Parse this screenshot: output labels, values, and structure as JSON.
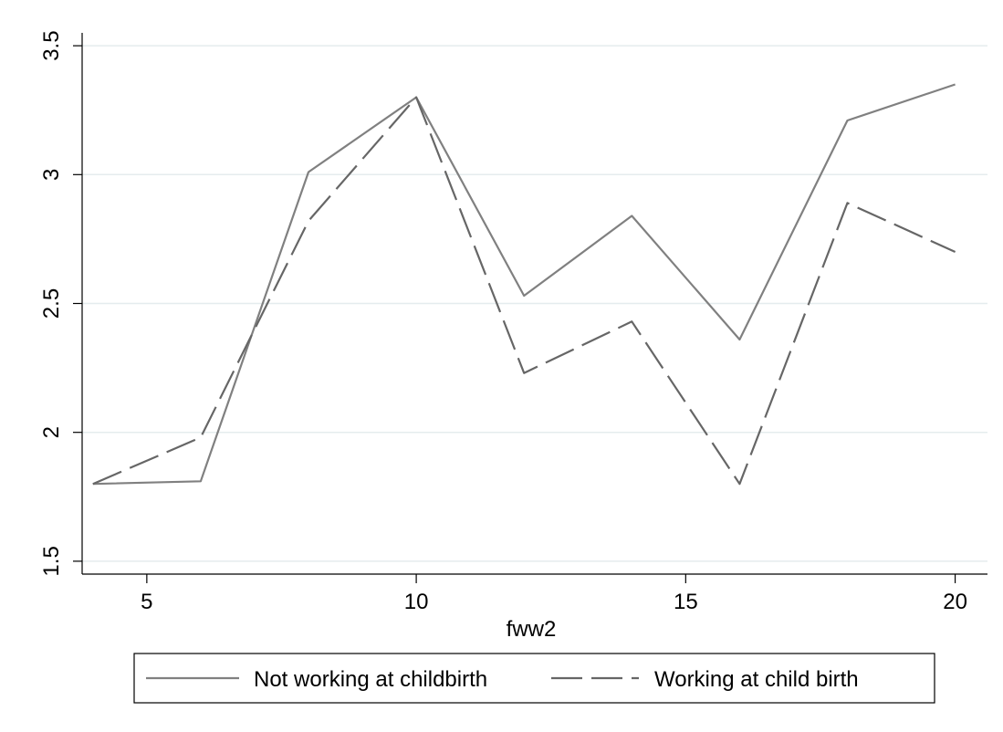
{
  "chart_data": {
    "type": "line",
    "xlabel": "fww2",
    "ylabel": "",
    "xlim": [
      3.8,
      20.6
    ],
    "ylim": [
      1.45,
      3.55
    ],
    "xticks": [
      5,
      10,
      15,
      20
    ],
    "yticks": [
      1.5,
      2,
      2.5,
      3,
      3.5
    ],
    "xtick_labels": [
      "5",
      "10",
      "15",
      "20"
    ],
    "ytick_labels": [
      "1.5",
      "2",
      "2.5",
      "3",
      "3.5"
    ],
    "grid": "horizontal",
    "legend_position": "bottom",
    "x": [
      4,
      6,
      8,
      10,
      12,
      14,
      16,
      18,
      20
    ],
    "series": [
      {
        "name": "Not working at childbirth",
        "values": [
          1.8,
          1.81,
          3.01,
          3.3,
          2.53,
          2.84,
          2.36,
          3.21,
          3.35
        ],
        "style": "solid",
        "color": "#808080"
      },
      {
        "name": "Working at child birth",
        "values": [
          1.8,
          1.98,
          2.82,
          3.3,
          2.23,
          2.43,
          1.8,
          2.89,
          2.7
        ],
        "style": "dashed",
        "color": "#666666"
      }
    ],
    "colors": {
      "gridline": "#e5ecee",
      "axis": "#000000"
    }
  }
}
